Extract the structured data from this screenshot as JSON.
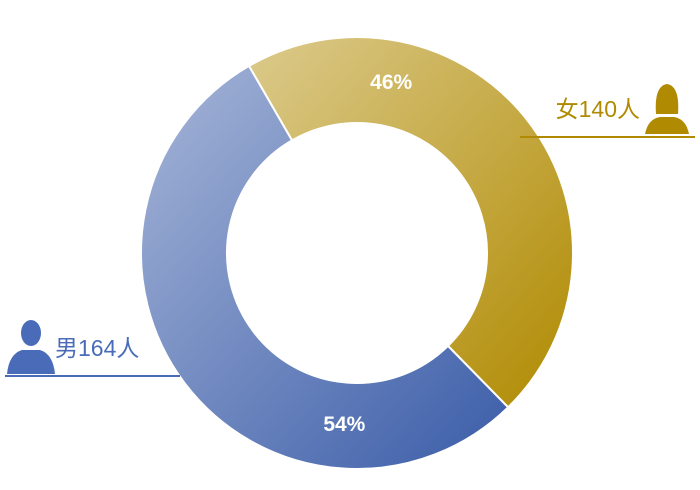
{
  "chart_data": {
    "type": "pie",
    "categories": [
      "女140人",
      "男164人"
    ],
    "values": [
      46,
      54
    ],
    "value_labels": [
      "46%",
      "54%"
    ],
    "colors": [
      "#b08a00",
      "#3a5ca8"
    ]
  }
}
